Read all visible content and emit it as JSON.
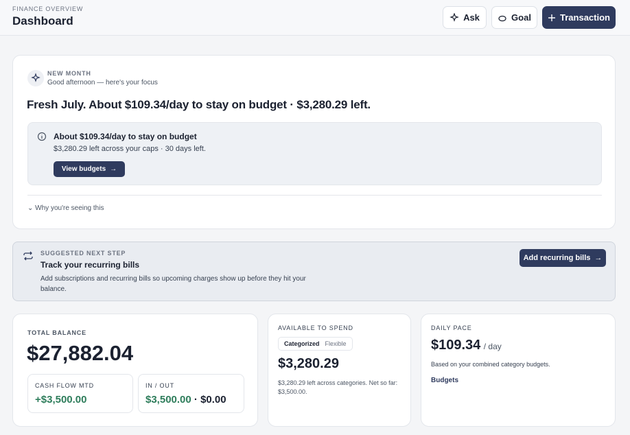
{
  "header": {
    "eyebrow": "FINANCE OVERVIEW",
    "title": "Dashboard",
    "buttons": [
      "Ask",
      "Goal",
      "Transaction"
    ]
  },
  "focus": {
    "eyebrow": "NEW MONTH",
    "greeting": "Good afternoon — here's your focus",
    "headline": "Fresh July. About $109.34/day to stay on budget · $3,280.29 left.",
    "callout": {
      "title": "About $109.34/day to stay on budget",
      "body": "$3,280.29 left across your caps · 30 days left.",
      "button": "View budgets"
    },
    "disclosure": "Why you're seeing this"
  },
  "suggestion": {
    "eyebrow": "SUGGESTED NEXT STEP",
    "title": "Track your recurring bills",
    "body": "Add subscriptions and recurring bills so upcoming charges show up before they hit your balance.",
    "button": "Add recurring bills"
  },
  "balance": {
    "label": "TOTAL BALANCE",
    "amount": "$27,882.04",
    "cash_flow": {
      "label": "CASH FLOW MTD",
      "value": "+$3,500.00"
    },
    "in_out": {
      "label": "IN / OUT",
      "in": "$3,500.00",
      "separator": "·",
      "out": "$0.00"
    }
  },
  "available": {
    "label": "AVAILABLE TO SPEND",
    "tabs": [
      "Categorized",
      "Flexible"
    ],
    "amount": "$3,280.29",
    "note": "$3,280.29 left across categories. Net so far: $3,500.00."
  },
  "pace": {
    "label": "DAILY PACE",
    "amount": "$109.34",
    "unit": "/ day",
    "note": "Based on your combined category budgets.",
    "link": "Budgets"
  }
}
